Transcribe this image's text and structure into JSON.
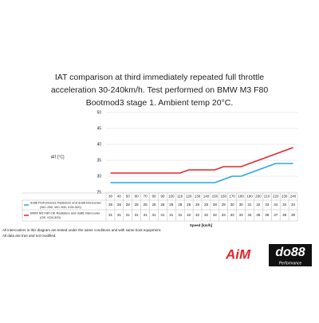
{
  "chart_data": {
    "type": "line",
    "title": [
      "IAT comparison at third immediately repeated full throttle",
      "acceleration 30-240km/h. Test performed on BMW M3 F80",
      "Bootmod3 stage 1. Ambient temp 20°C."
    ],
    "y_label": "IAT [°C]",
    "x_label": "Speed [km/h]",
    "categories": [
      30,
      40,
      50,
      60,
      70,
      80,
      90,
      100,
      110,
      120,
      130,
      140,
      150,
      160,
      170,
      180,
      190,
      200,
      210,
      220,
      230,
      240
    ],
    "series": [
      {
        "name": [
          "do88 Performance Radiators and do88 Intercooler",
          "(WC-250, WC-300, ICM-320)"
        ],
        "color": "#29a8e0",
        "values": [
          28,
          28,
          28,
          28,
          28,
          28,
          28,
          28,
          28,
          28,
          28,
          28,
          28,
          29,
          30,
          30,
          31,
          32,
          33,
          34,
          34,
          34
        ]
      },
      {
        "name": [
          "BMW M3 F80 OE Radiators and do88 Intercooler",
          "(OE, ICM-320)"
        ],
        "color": "#e3262b",
        "values": [
          31,
          31,
          31,
          31,
          31,
          31,
          31,
          31,
          31,
          32,
          32,
          32,
          32,
          33,
          33,
          33,
          34,
          35,
          36,
          37,
          38,
          39
        ]
      }
    ],
    "ylim": [
      25,
      50
    ],
    "yticks": [
      25,
      30,
      35,
      40,
      45,
      50
    ],
    "grid": true
  },
  "footnotes": [
    "All intercoolers in this diagram are tested under the same conditions and with same boot equipment.",
    "All data are true and not modified."
  ],
  "logos": {
    "aim": "AiM",
    "do88": "do88",
    "do88_sub": "Performance"
  }
}
